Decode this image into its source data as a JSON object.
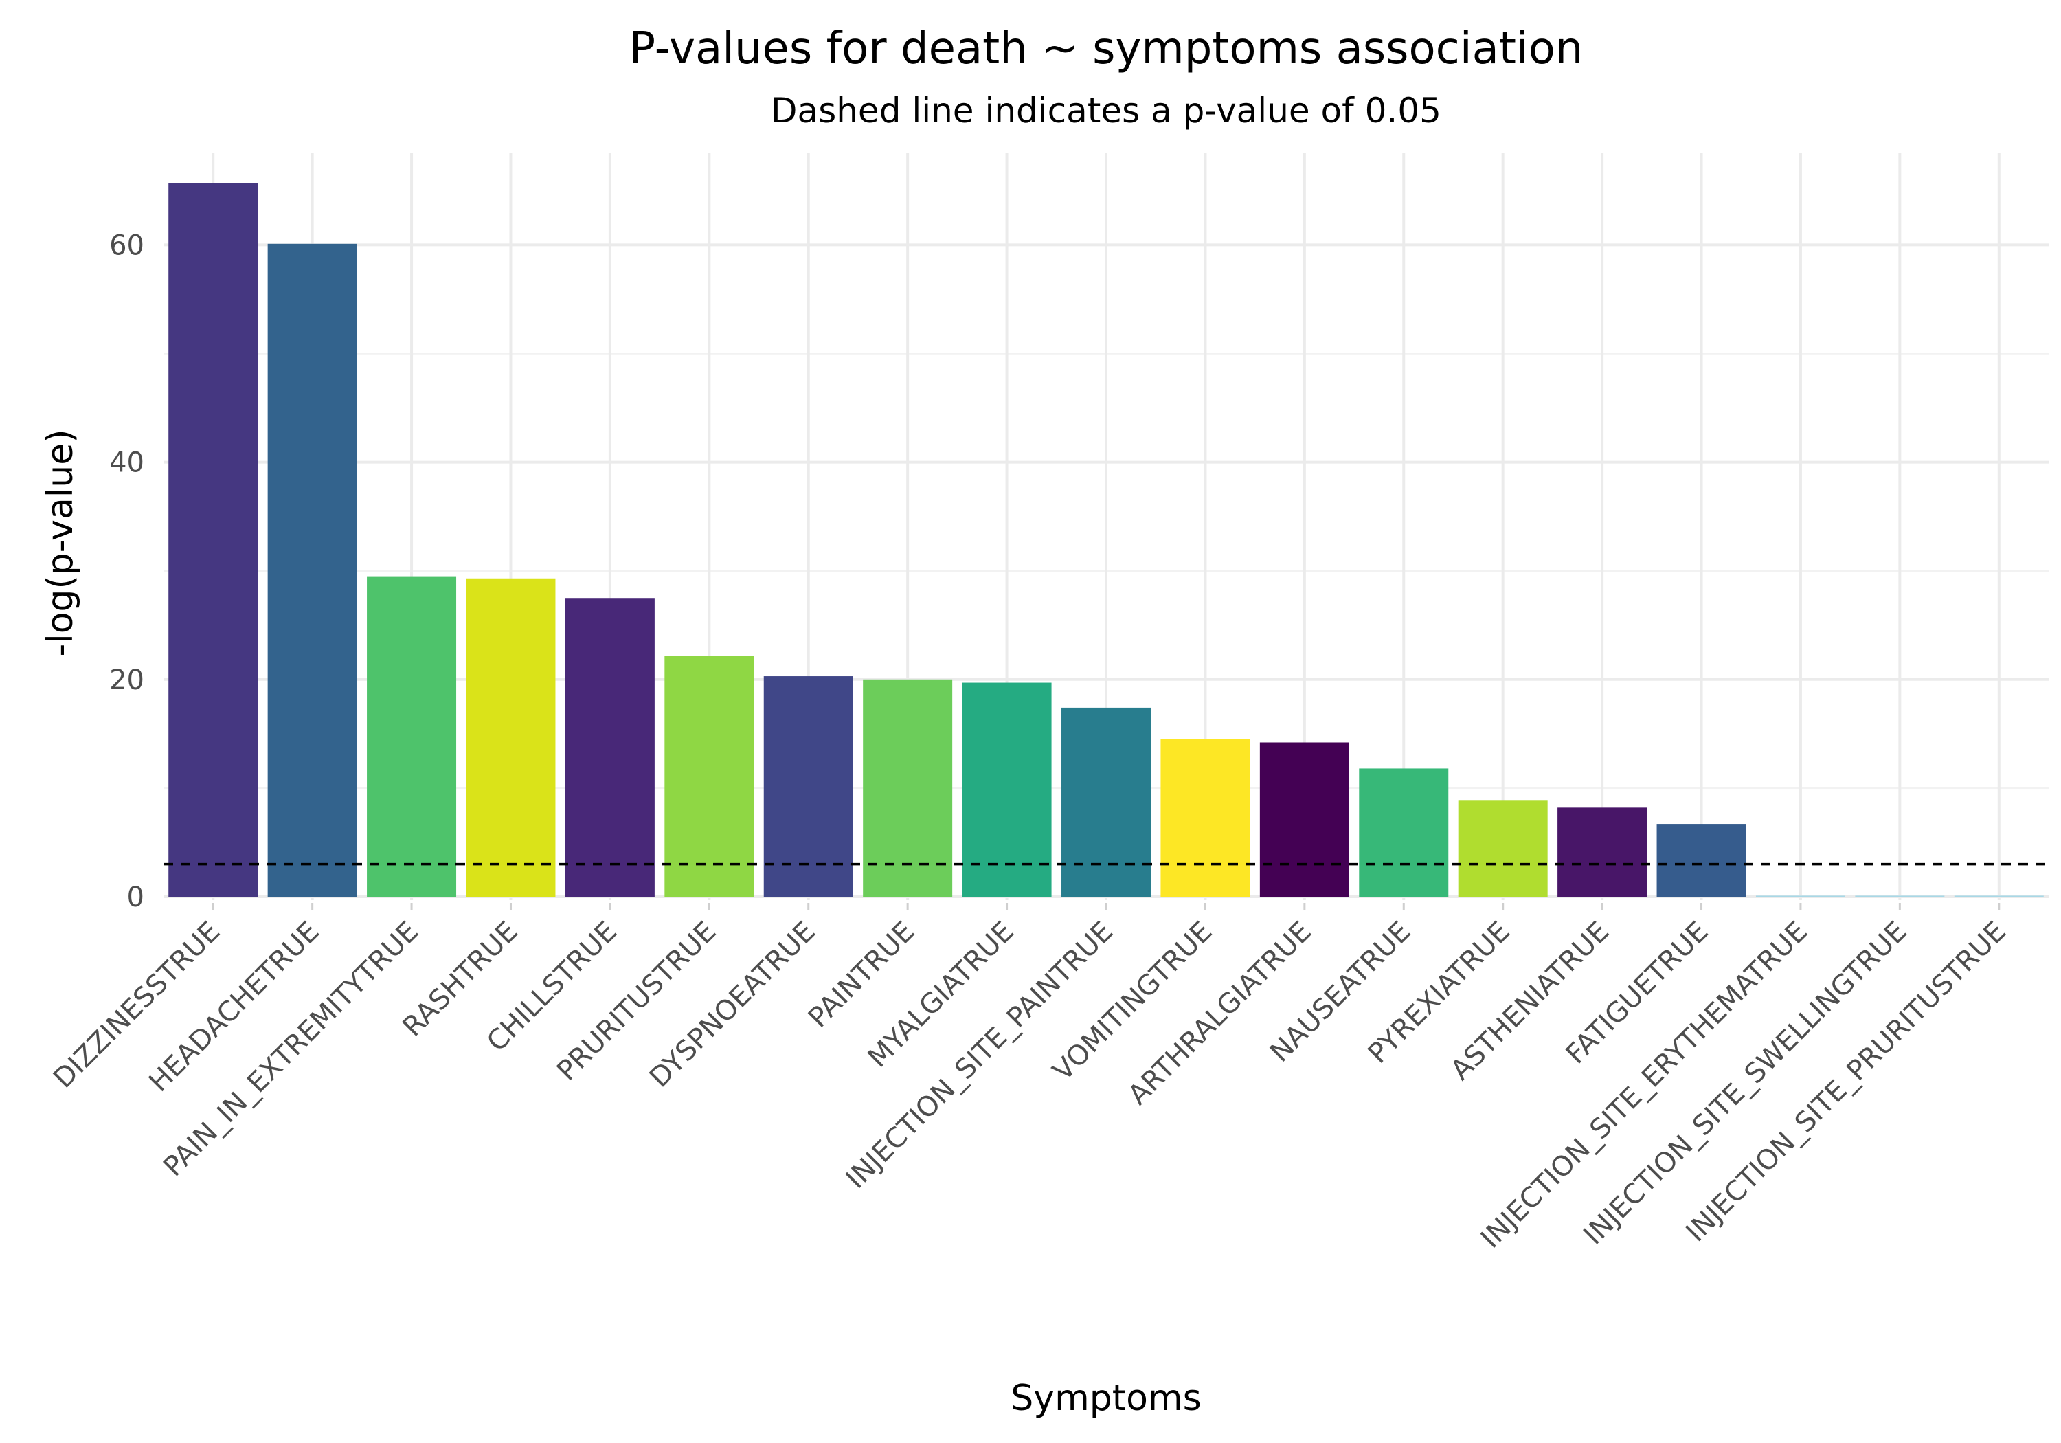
{
  "chart_data": {
    "type": "bar",
    "title": "P-values for death ~ symptoms association",
    "subtitle": "Dashed line indicates a p-value of 0.05",
    "xlabel": "Symptoms",
    "ylabel": "-log(p-value)",
    "ylim": [
      0,
      68.5
    ],
    "yticks": [
      0,
      20,
      40,
      60
    ],
    "grid": true,
    "reference_line": {
      "value": 3.0,
      "style": "dashed"
    },
    "categories": [
      "DIZZINESSTRUE",
      "HEADACHETRUE",
      "PAIN_IN_EXTREMITYTRUE",
      "RASHTRUE",
      "CHILLSTRUE",
      "PRURITUSTRUE",
      "DYSPNOEATRUE",
      "PAINTRUE",
      "MYALGIATRUE",
      "INJECTION_SITE_PAINTRUE",
      "VOMITINGTRUE",
      "ARTHRALGIATRUE",
      "NAUSEATRUE",
      "PYREXIATRUE",
      "ASTHENIATRUE",
      "FATIGUETRUE",
      "INJECTION_SITE_ERYTHEMATRUE",
      "INJECTION_SITE_SWELLINGTRUE",
      "INJECTION_SITE_PRURITUSTRUE"
    ],
    "values": [
      65.7,
      60.1,
      29.5,
      29.3,
      27.5,
      22.2,
      20.3,
      20.0,
      19.7,
      17.4,
      14.5,
      14.2,
      11.8,
      8.9,
      8.2,
      6.7,
      0.1,
      0.1,
      0.1
    ],
    "colors": [
      "#453781",
      "#33638d",
      "#4ec36b",
      "#dae319",
      "#482878",
      "#8fd744",
      "#404788",
      "#6ccd5a",
      "#25ab82",
      "#287d8e",
      "#fde725",
      "#440154",
      "#37b878",
      "#b0dd2f",
      "#481668",
      "#365c8d",
      "#a8d8e6",
      "#a8d8e6",
      "#a8d8e6"
    ]
  }
}
